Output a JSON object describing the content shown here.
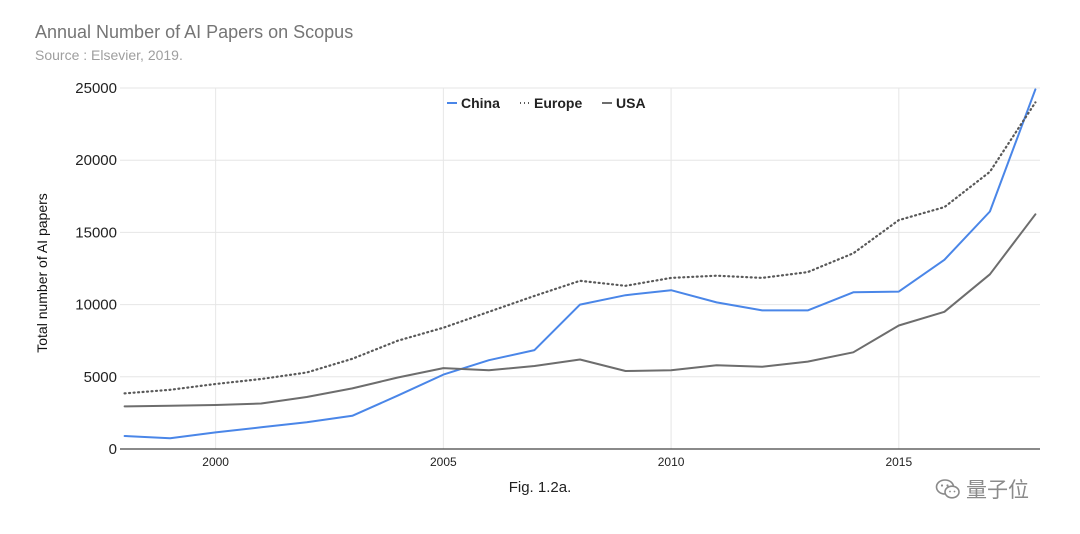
{
  "chart_data": {
    "type": "line",
    "title": "Annual Number of AI Papers on Scopus",
    "subtitle": "Source : Elsevier, 2019.",
    "xlabel": "",
    "ylabel": "Total number of AI papers",
    "caption": "Fig. 1.2a.",
    "xlim": [
      1997.9,
      2018.1
    ],
    "ylim": [
      0,
      25000
    ],
    "x_ticks": [
      2000,
      2005,
      2010,
      2015
    ],
    "y_ticks": [
      0,
      5000,
      10000,
      15000,
      20000,
      25000
    ],
    "grid": true,
    "legend_position": "top-center",
    "x": [
      1998,
      1999,
      2000,
      2001,
      2002,
      2003,
      2004,
      2005,
      2006,
      2007,
      2008,
      2009,
      2010,
      2011,
      2012,
      2013,
      2014,
      2015,
      2016,
      2017,
      2018
    ],
    "series": [
      {
        "name": "China",
        "color": "#4a86e8",
        "style": "solid",
        "values": [
          900,
          750,
          1150,
          1500,
          1850,
          2300,
          3700,
          5150,
          6150,
          6850,
          10000,
          10650,
          11000,
          10150,
          9600,
          9600,
          10850,
          10900,
          13100,
          16450,
          24900
        ]
      },
      {
        "name": "Europe",
        "color": "#595959",
        "style": "dotted",
        "values": [
          3850,
          4100,
          4500,
          4850,
          5300,
          6250,
          7500,
          8400,
          9500,
          10600,
          11650,
          11300,
          11850,
          12000,
          11850,
          12250,
          13550,
          15850,
          16750,
          19200,
          24000
        ]
      },
      {
        "name": "USA",
        "color": "#6d6d6d",
        "style": "solid",
        "values": [
          2950,
          3000,
          3050,
          3150,
          3600,
          4200,
          4950,
          5600,
          5450,
          5750,
          6200,
          5400,
          5450,
          5800,
          5700,
          6050,
          6700,
          8550,
          9500,
          12100,
          16250
        ]
      }
    ]
  },
  "watermark": {
    "icon": "wechat-icon",
    "text": "量子位"
  }
}
